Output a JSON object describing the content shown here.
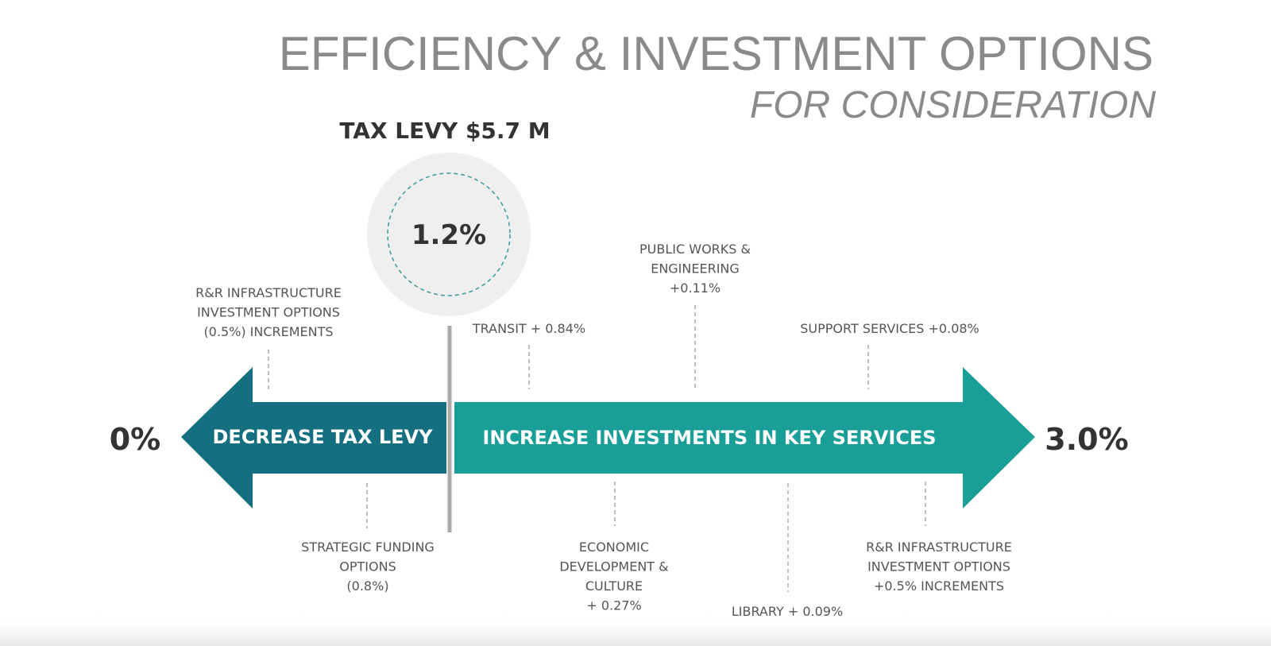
{
  "header": {
    "title": "EFFICIENCY & INVESTMENT OPTIONS",
    "subtitle": "FOR CONSIDERATION"
  },
  "levy": {
    "label": "TAX LEVY $5.7 M",
    "rate": "1.2%"
  },
  "scale": {
    "min": "0%",
    "max": "3.0%"
  },
  "arrows": {
    "decrease": "DECREASE TAX LEVY",
    "increase": "INCREASE INVESTMENTS IN KEY SERVICES"
  },
  "options_above": [
    {
      "lines": [
        "R&R INFRASTRUCTURE",
        "INVESTMENT OPTIONS",
        "(0.5%) INCREMENTS"
      ]
    },
    {
      "lines": [
        "TRANSIT + 0.84%"
      ]
    },
    {
      "lines": [
        "PUBLIC WORKS &",
        "ENGINEERING",
        "+0.11%"
      ]
    },
    {
      "lines": [
        "SUPPORT SERVICES +0.08%"
      ]
    }
  ],
  "options_below": [
    {
      "lines": [
        "STRATEGIC FUNDING",
        "OPTIONS",
        "(0.8%)"
      ]
    },
    {
      "lines": [
        "ECONOMIC",
        "DEVELOPMENT &",
        "CULTURE",
        "+ 0.27%"
      ]
    },
    {
      "lines": [
        "LIBRARY + 0.09%"
      ]
    },
    {
      "lines": [
        "R&R INFRASTRUCTURE",
        "INVESTMENT OPTIONS",
        "+0.5% INCREMENTS"
      ]
    }
  ]
}
